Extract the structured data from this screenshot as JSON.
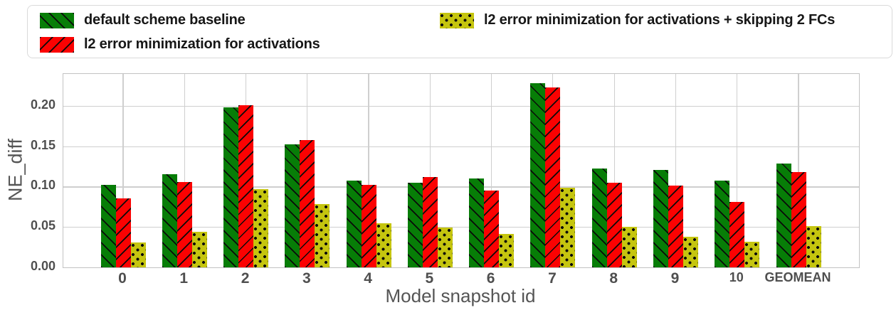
{
  "figure": {
    "background": "#ffffff"
  },
  "legend": {
    "position": "top",
    "border_color": "#dadada"
  },
  "chart_data": {
    "type": "bar",
    "title": "",
    "xlabel": "Model snapshot id",
    "ylabel": "NE_diff",
    "categories": [
      "0",
      "1",
      "2",
      "3",
      "4",
      "5",
      "6",
      "7",
      "8",
      "9",
      "10",
      "GEOMEAN"
    ],
    "series": [
      {
        "name": "default scheme baseline",
        "color": "#077d07",
        "hatch": "backslash",
        "values": [
          0.102,
          0.115,
          0.198,
          0.152,
          0.107,
          0.105,
          0.11,
          0.228,
          0.122,
          0.121,
          0.107,
          0.129
        ]
      },
      {
        "name": "l2 error minimization for activations",
        "color": "#fb0202",
        "hatch": "slash",
        "values": [
          0.085,
          0.106,
          0.201,
          0.158,
          0.102,
          0.112,
          0.095,
          0.223,
          0.105,
          0.101,
          0.081,
          0.118
        ]
      },
      {
        "name": "l2 error minimization for activations + skipping 2 FCs",
        "color": "#c5c50f",
        "hatch": "dots",
        "values": [
          0.031,
          0.044,
          0.097,
          0.078,
          0.055,
          0.049,
          0.041,
          0.099,
          0.05,
          0.038,
          0.032,
          0.051
        ]
      }
    ],
    "ylim": [
      0,
      0.2395
    ],
    "yticks": [
      0,
      0.05,
      0.1,
      0.15,
      0.2
    ],
    "ytick_labels": [
      "0.00",
      "0.05",
      "0.10",
      "0.15",
      "0.20"
    ],
    "grid": "both",
    "legend_position": "top"
  }
}
